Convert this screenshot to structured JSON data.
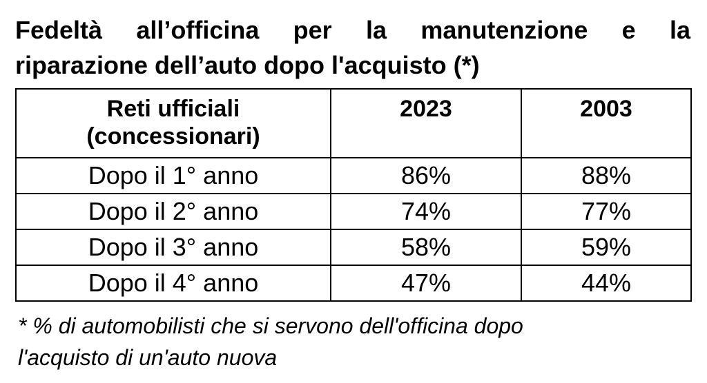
{
  "document": {
    "title_line1": "Fedeltà all’officina per la manutenzione e la",
    "title_line2": "riparazione dell’auto dopo l'acquisto (*)",
    "table": {
      "headers": {
        "col1_line1": "Reti ufficiali",
        "col1_line2": "(concessionari)",
        "col2": "2023",
        "col3": "2003"
      },
      "rows": [
        {
          "label": "Dopo il 1° anno",
          "v2023": "86%",
          "v2003": "88%"
        },
        {
          "label": "Dopo il 2° anno",
          "v2023": "74%",
          "v2003": "77%"
        },
        {
          "label": "Dopo il 3° anno",
          "v2023": "58%",
          "v2003": "59%"
        },
        {
          "label": "Dopo il 4° anno",
          "v2023": "47%",
          "v2003": "44%"
        }
      ]
    },
    "footnote_line1": "* % di automobilisti che si servono dell'officina dopo",
    "footnote_line2": "l'acquisto di un'auto nuova"
  }
}
